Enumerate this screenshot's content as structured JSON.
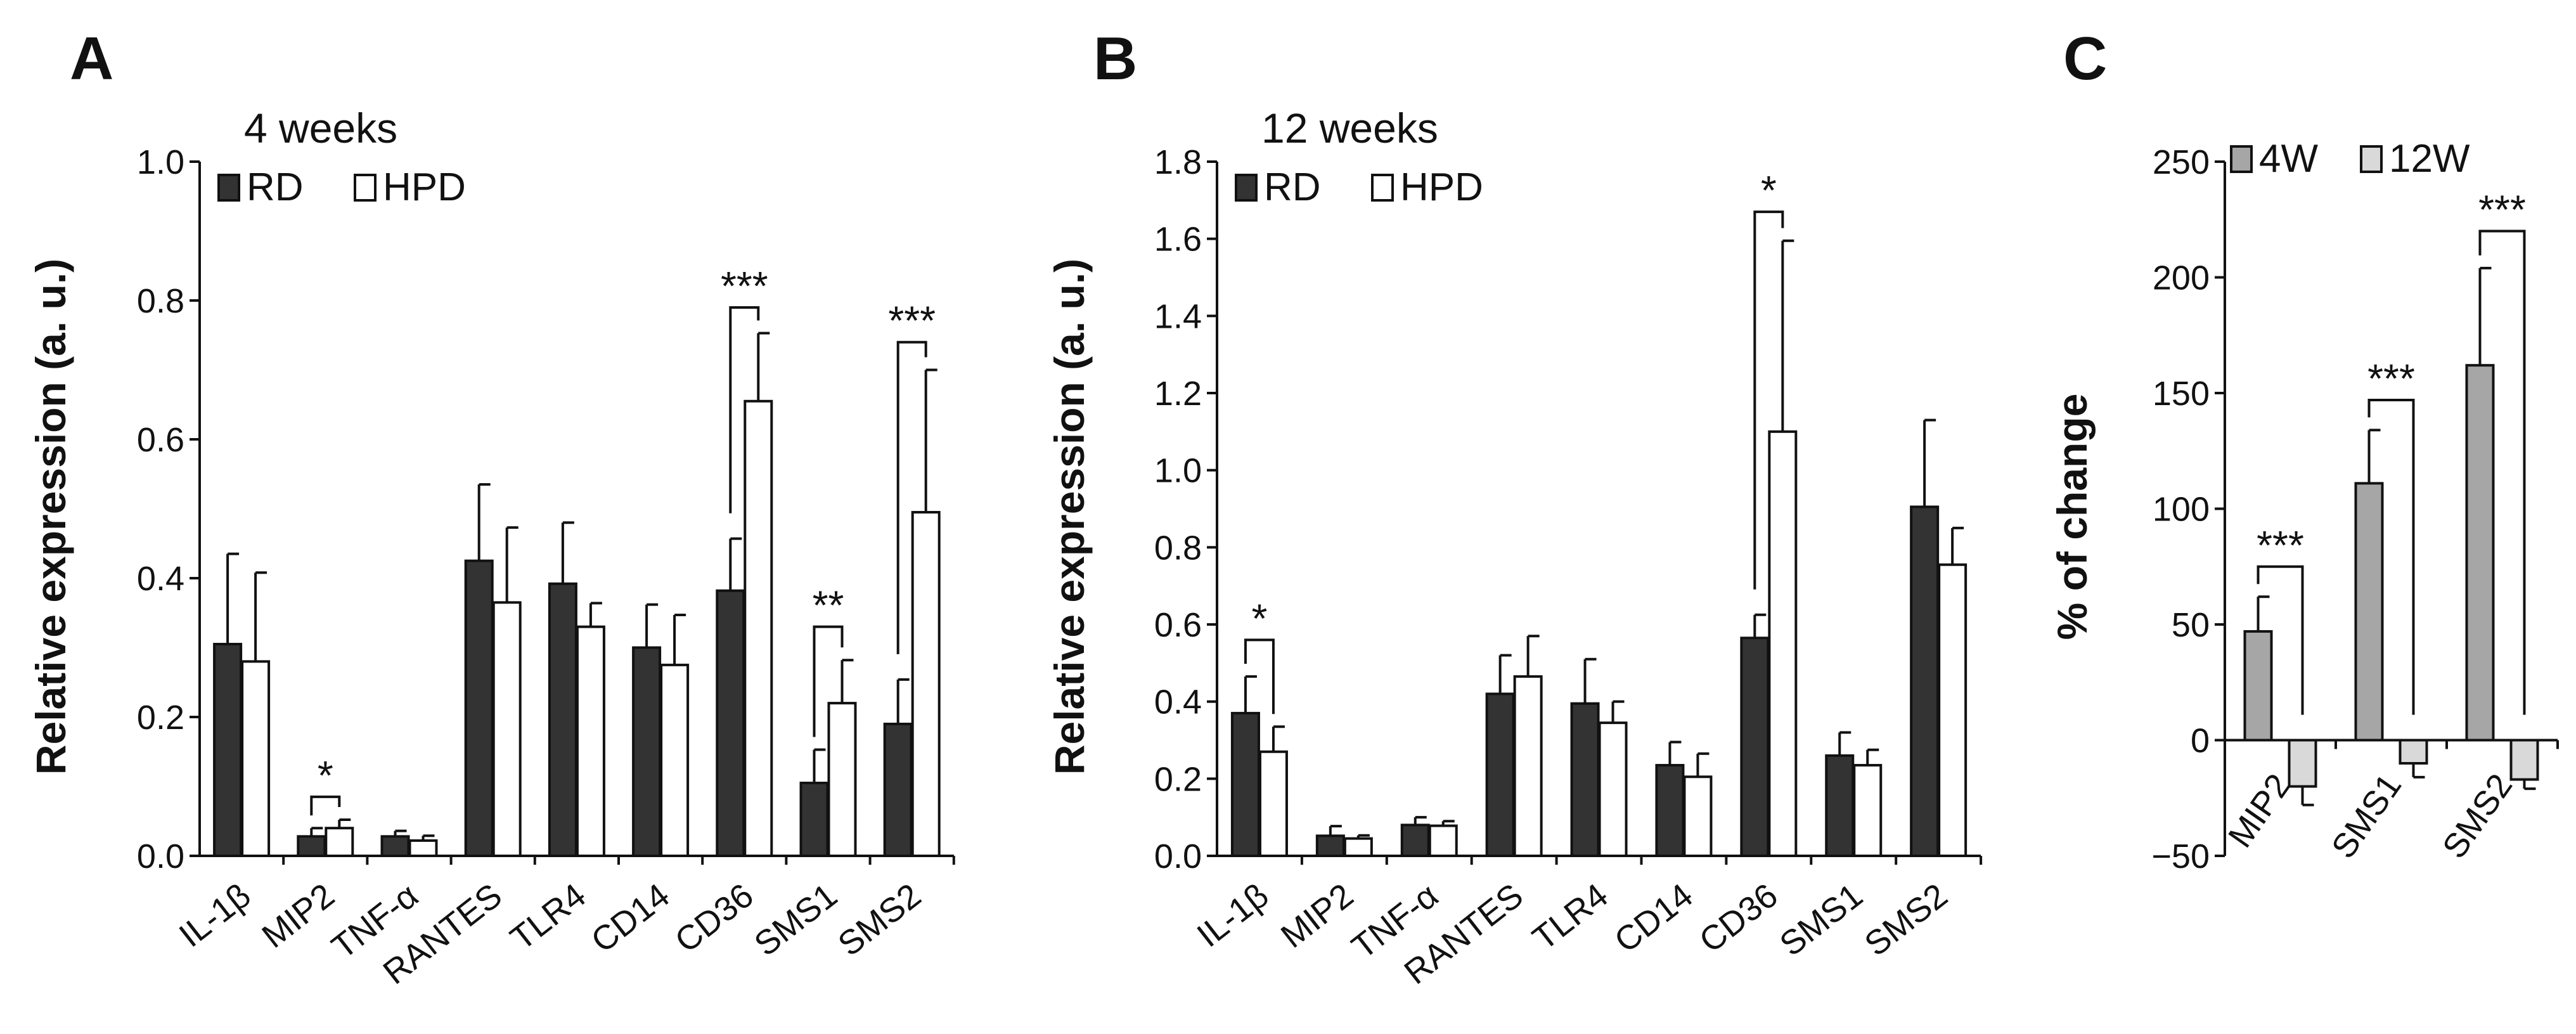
{
  "colors": {
    "rd": "#333333",
    "hpd": "#ffffff",
    "w4": "#a6a6a6",
    "w12": "#d9d9d9",
    "ink": "#111111"
  },
  "chart_data": [
    {
      "panel": "A",
      "type": "bar",
      "title": "4 weeks",
      "ylabel": "Relative expression (a. u.)",
      "xlabel": "",
      "ylim": [
        0,
        1.0
      ],
      "yticks": [
        "0.0",
        "0.2",
        "0.4",
        "0.6",
        "0.8",
        "1.0"
      ],
      "categories": [
        "IL-1β",
        "MIP2",
        "TNF-α",
        "RANTES",
        "TLR4",
        "CD14",
        "CD36",
        "SMS1",
        "SMS2"
      ],
      "legend": {
        "position": "top-left"
      },
      "series": [
        {
          "name": "RD",
          "color_key": "rd",
          "values": [
            0.305,
            0.028,
            0.028,
            0.425,
            0.392,
            0.3,
            0.382,
            0.105,
            0.19
          ],
          "errors": [
            0.13,
            0.012,
            0.008,
            0.11,
            0.088,
            0.062,
            0.075,
            0.048,
            0.064
          ]
        },
        {
          "name": "HPD",
          "color_key": "hpd",
          "values": [
            0.28,
            0.04,
            0.022,
            0.365,
            0.33,
            0.275,
            0.655,
            0.22,
            0.495
          ],
          "errors": [
            0.128,
            0.012,
            0.007,
            0.108,
            0.034,
            0.072,
            0.098,
            0.062,
            0.205
          ]
        }
      ],
      "significance": [
        {
          "category": 1,
          "label": "*",
          "style": "both",
          "level": 0.085
        },
        {
          "category": 6,
          "label": "***",
          "style": "right-top",
          "level": 0.79
        },
        {
          "category": 7,
          "label": "**",
          "style": "both",
          "level": 0.33
        },
        {
          "category": 8,
          "label": "***",
          "style": "right-top",
          "level": 0.74
        }
      ]
    },
    {
      "panel": "B",
      "type": "bar",
      "title": "12 weeks",
      "ylabel": "Relative expression (a. u.)",
      "xlabel": "",
      "ylim": [
        0,
        1.8
      ],
      "yticks": [
        "0.0",
        "0.2",
        "0.4",
        "0.6",
        "0.8",
        "1.0",
        "1.2",
        "1.4",
        "1.6",
        "1.8"
      ],
      "categories": [
        "IL-1β",
        "MIP2",
        "TNF-α",
        "RANTES",
        "TLR4",
        "CD14",
        "CD36",
        "SMS1",
        "SMS2"
      ],
      "legend": {
        "position": "top-left"
      },
      "series": [
        {
          "name": "RD",
          "color_key": "rd",
          "values": [
            0.37,
            0.052,
            0.08,
            0.42,
            0.395,
            0.235,
            0.565,
            0.26,
            0.905
          ],
          "errors": [
            0.095,
            0.025,
            0.02,
            0.1,
            0.115,
            0.06,
            0.06,
            0.06,
            0.225
          ]
        },
        {
          "name": "HPD",
          "color_key": "hpd",
          "values": [
            0.27,
            0.045,
            0.078,
            0.465,
            0.345,
            0.205,
            1.1,
            0.235,
            0.755
          ],
          "errors": [
            0.065,
            0.008,
            0.012,
            0.105,
            0.055,
            0.06,
            0.495,
            0.04,
            0.095
          ]
        }
      ],
      "significance": [
        {
          "category": 0,
          "label": "*",
          "style": "both",
          "level": 0.56
        },
        {
          "category": 6,
          "label": "*",
          "style": "right-top",
          "level": 1.67
        }
      ]
    },
    {
      "panel": "C",
      "type": "bar",
      "title": "",
      "ylabel": "% of change",
      "xlabel": "",
      "ylim": [
        -50,
        250
      ],
      "yticks": [
        "−50",
        "0",
        "50",
        "100",
        "150",
        "200",
        "250"
      ],
      "categories": [
        "MIP2",
        "SMS1",
        "SMS2"
      ],
      "legend": {
        "position": "top"
      },
      "series": [
        {
          "name": "4W",
          "color_key": "w4",
          "values": [
            47,
            111,
            162
          ],
          "errors": [
            15,
            23,
            42
          ]
        },
        {
          "name": "12W",
          "color_key": "w12",
          "values": [
            -20,
            -10,
            -17
          ],
          "errors": [
            8,
            6,
            4
          ]
        }
      ],
      "significance": [
        {
          "category": 0,
          "label": "***",
          "style": "left-top",
          "level": 75
        },
        {
          "category": 1,
          "label": "***",
          "style": "left-top",
          "level": 147
        },
        {
          "category": 2,
          "label": "***",
          "style": "left-top",
          "level": 220
        }
      ]
    }
  ]
}
